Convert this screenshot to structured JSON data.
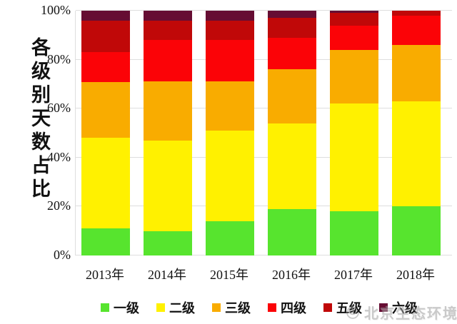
{
  "chart": {
    "y_axis_title": "各级别天数占比",
    "watermark_text": "北京生态环境"
  },
  "chart_data": {
    "type": "bar",
    "stacked": true,
    "unit": "percent_of_days",
    "title": "",
    "xlabel": "",
    "ylabel": "各级别天数占比",
    "ylim": [
      0,
      100
    ],
    "y_ticks": [
      "0%",
      "20%",
      "40%",
      "60%",
      "80%",
      "100%"
    ],
    "grid": true,
    "legend_position": "bottom",
    "categories": [
      "2013年",
      "2014年",
      "2015年",
      "2016年",
      "2017年",
      "2018年"
    ],
    "series": [
      {
        "name": "一级",
        "color": "#57E42E",
        "values": [
          11,
          10,
          14,
          19,
          18,
          20
        ]
      },
      {
        "name": "二级",
        "color": "#FFF100",
        "values": [
          37,
          37,
          37,
          35,
          44,
          43
        ]
      },
      {
        "name": "三级",
        "color": "#F9AC00",
        "values": [
          23,
          24,
          20,
          22,
          22,
          23
        ]
      },
      {
        "name": "四级",
        "color": "#FB0307",
        "values": [
          12,
          17,
          17,
          13,
          10,
          12
        ]
      },
      {
        "name": "五级",
        "color": "#C00808",
        "values": [
          13,
          8,
          8,
          8,
          5,
          2
        ]
      },
      {
        "name": "六级",
        "color": "#660D33",
        "values": [
          4,
          4,
          4,
          3,
          1,
          0
        ]
      }
    ],
    "colors": {
      "gridline": "#DEDEDE",
      "axis_text": "#111111",
      "watermark": "#9F9F9F",
      "background": "#FFFFFF"
    }
  }
}
